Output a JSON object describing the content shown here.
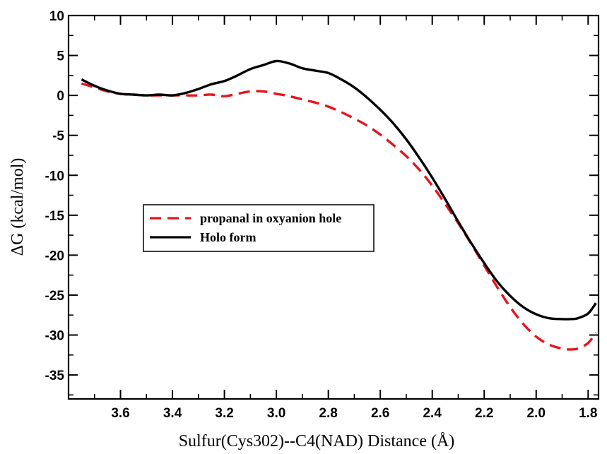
{
  "chart_data": {
    "type": "line",
    "xlabel": "Sulfur(Cys302)--C4(NAD) Distance (Å)",
    "ylabel": "ΔG (kcal/mol)",
    "xlim": [
      3.8,
      1.76
    ],
    "ylim": [
      -38,
      10
    ],
    "x_reversed": true,
    "x_ticks": [
      3.6,
      3.4,
      3.2,
      3.0,
      2.8,
      2.6,
      2.4,
      2.2,
      2.0,
      1.8
    ],
    "x_tick_labels": [
      "3.6",
      "3.4",
      "3.2",
      "3.0",
      "2.8",
      "2.6",
      "2.4",
      "2.2",
      "2.0",
      "1.8"
    ],
    "y_ticks": [
      10,
      5,
      0,
      -5,
      -10,
      -15,
      -20,
      -25,
      -30,
      -35
    ],
    "y_tick_labels": [
      "10",
      "5",
      "0",
      "-5",
      "-10",
      "-15",
      "-20",
      "-25",
      "-30",
      "-35"
    ],
    "grid": false,
    "legend_position": "center-left",
    "series": [
      {
        "name": "propanal in oxyanion hole",
        "color": "#e8141c",
        "style": "dashed",
        "x": [
          3.75,
          3.7,
          3.65,
          3.6,
          3.55,
          3.5,
          3.45,
          3.4,
          3.35,
          3.3,
          3.25,
          3.2,
          3.15,
          3.1,
          3.05,
          3.0,
          2.95,
          2.9,
          2.85,
          2.8,
          2.75,
          2.7,
          2.65,
          2.6,
          2.55,
          2.5,
          2.45,
          2.4,
          2.35,
          2.3,
          2.25,
          2.2,
          2.15,
          2.1,
          2.05,
          2.0,
          1.95,
          1.9,
          1.87,
          1.84,
          1.8,
          1.77
        ],
        "y": [
          1.5,
          1.0,
          0.5,
          0.2,
          0.1,
          0.0,
          0.0,
          0.0,
          0.0,
          0.0,
          0.1,
          -0.1,
          0.2,
          0.5,
          0.5,
          0.2,
          -0.1,
          -0.5,
          -0.9,
          -1.4,
          -2.1,
          -2.9,
          -3.8,
          -4.9,
          -6.2,
          -7.6,
          -9.3,
          -11.3,
          -13.6,
          -16.0,
          -18.6,
          -21.3,
          -24.0,
          -26.5,
          -28.6,
          -30.2,
          -31.2,
          -31.7,
          -31.8,
          -31.7,
          -31.0,
          -29.7
        ]
      },
      {
        "name": "Holo form",
        "color": "#000000",
        "style": "solid",
        "x": [
          3.75,
          3.7,
          3.65,
          3.6,
          3.55,
          3.5,
          3.45,
          3.4,
          3.35,
          3.3,
          3.25,
          3.2,
          3.15,
          3.1,
          3.05,
          3.0,
          2.95,
          2.9,
          2.85,
          2.8,
          2.75,
          2.7,
          2.65,
          2.6,
          2.55,
          2.5,
          2.45,
          2.4,
          2.35,
          2.3,
          2.25,
          2.2,
          2.15,
          2.1,
          2.05,
          2.0,
          1.95,
          1.9,
          1.87,
          1.84,
          1.8,
          1.77
        ],
        "y": [
          2.0,
          1.2,
          0.6,
          0.2,
          0.1,
          0.0,
          0.1,
          0.0,
          0.3,
          0.8,
          1.4,
          1.8,
          2.5,
          3.3,
          3.8,
          4.3,
          4.0,
          3.4,
          3.1,
          2.8,
          2.0,
          1.0,
          -0.3,
          -1.8,
          -3.5,
          -5.5,
          -7.8,
          -10.3,
          -13.0,
          -15.8,
          -18.5,
          -21.0,
          -23.3,
          -25.1,
          -26.5,
          -27.4,
          -27.9,
          -28.0,
          -28.0,
          -27.9,
          -27.3,
          -26.0
        ]
      }
    ]
  }
}
